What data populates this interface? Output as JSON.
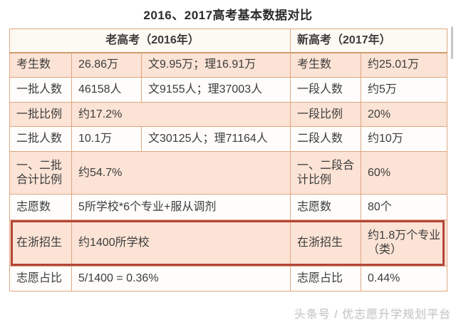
{
  "title": "2016、2017高考基本数据对比",
  "table": {
    "headers": {
      "old": "老高考（2016年）",
      "new": "新高考（2017年）"
    },
    "rows": [
      {
        "old_label": "考生数",
        "old_value": "26.86万",
        "old_detail": "文9.95万；理16.91万",
        "new_label": "考生数",
        "new_value": "约25.01万"
      },
      {
        "old_label": "一批人数",
        "old_value": "46158人",
        "old_detail": "文9155人；理37003人",
        "new_label": "一段人数",
        "new_value": "约5万"
      },
      {
        "old_label": "一批比例",
        "old_value": "约17.2%",
        "new_label": "一段比例",
        "new_value": "20%"
      },
      {
        "old_label": "二批人数",
        "old_value": "10.1万",
        "old_detail": "文30125人；理71164人",
        "new_label": "二段人数",
        "new_value": "约10万"
      },
      {
        "old_label": "一、二批合计比例",
        "old_value": "约54.7%",
        "new_label": "一、二段合计比例",
        "new_value": "60%"
      },
      {
        "old_label": "志愿数",
        "old_value": "5所学校*6个专业+服从调剂",
        "new_label": "志愿数",
        "new_value": "80个"
      },
      {
        "old_label": "在浙招生",
        "old_value": "约1400所学校",
        "new_label": "在浙招生",
        "new_value": "约1.8万个专业（类）"
      },
      {
        "old_label": "志愿占比",
        "old_value": "5/1400 = 0.36%",
        "new_label": "志愿占比",
        "new_value": "0.44%"
      }
    ],
    "highlighted_row_label": "在浙招生"
  },
  "watermark": "头条号 / 优志愿升学规划平台",
  "colors": {
    "table_border": "#dfa781",
    "shaded_row_bg": "#fbe3d5",
    "plain_row_bg": "#fefdfb",
    "header_bg": "#fdfaf4",
    "highlight_border": "#b3453a",
    "text": "#3c3c3c",
    "watermark_text": "#c8c8c8"
  }
}
